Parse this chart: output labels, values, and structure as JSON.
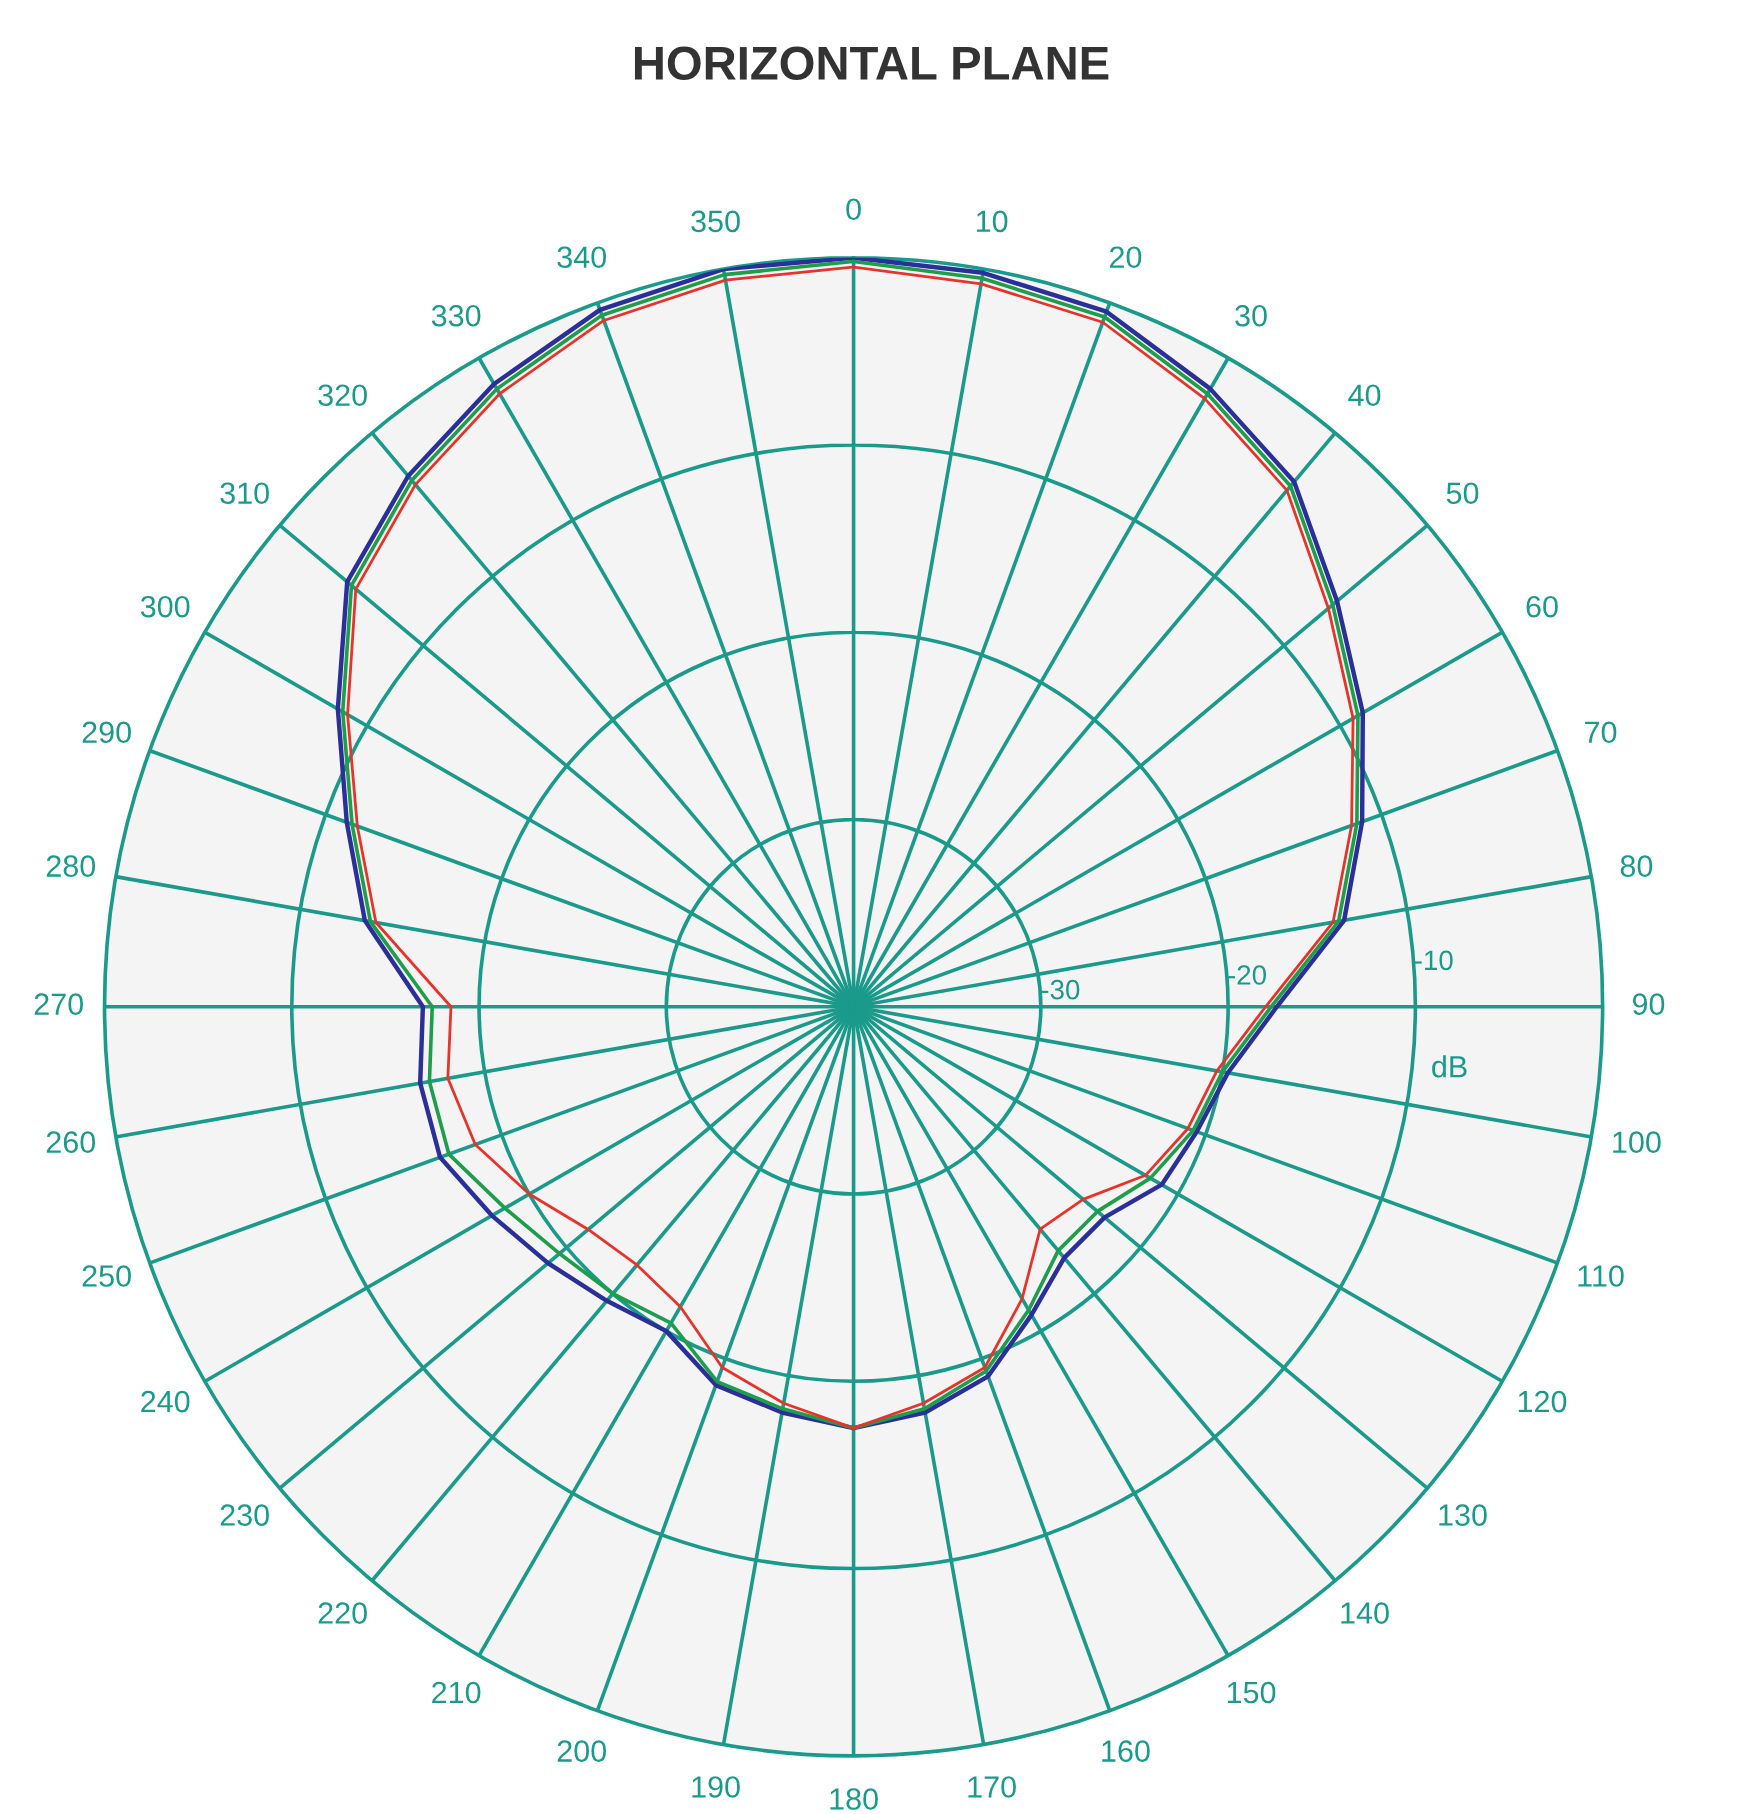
{
  "chart_data": {
    "type": "radar",
    "title": "HORIZONTAL PLANE",
    "ylabel": "dB",
    "categories": [
      "0",
      "10",
      "20",
      "30",
      "40",
      "50",
      "60",
      "70",
      "80",
      "90",
      "100",
      "110",
      "120",
      "130",
      "140",
      "150",
      "160",
      "170",
      "180",
      "190",
      "200",
      "210",
      "220",
      "230",
      "240",
      "250",
      "260",
      "270",
      "280",
      "290",
      "300",
      "310",
      "320",
      "330",
      "340",
      "350"
    ],
    "ylim": [
      -40,
      0
    ],
    "yticks": [
      {
        "value": -30,
        "label": "-30"
      },
      {
        "value": -20,
        "label": "-20"
      },
      {
        "value": -10,
        "label": "-10"
      }
    ],
    "grid": true,
    "marker": "none",
    "line_style": "solid",
    "series": [
      {
        "color": "#2b2f9a",
        "values": [
          0,
          -0.2,
          -0.5,
          -1.9,
          -3.4,
          -6.3,
          -8.6,
          -11.1,
          -13.4,
          -17.4,
          -19.7,
          -20.5,
          -21,
          -22.5,
          -22.5,
          -21,
          -19,
          -18,
          -17.5,
          -18,
          -18.5,
          -20,
          -19.5,
          -18.7,
          -17.7,
          -16.5,
          -16.5,
          -17,
          -13.5,
          -11.2,
          -8.2,
          -4.7,
          -3,
          -1.6,
          -0.4,
          0
        ]
      },
      {
        "color": "#1e9e4a",
        "values": [
          -0.2,
          -0.5,
          -0.8,
          -2.2,
          -3.7,
          -6.6,
          -8.9,
          -11.4,
          -13.7,
          -17.7,
          -20,
          -20.7,
          -21.7,
          -23,
          -23,
          -21.3,
          -19.3,
          -18.2,
          -17.5,
          -18.2,
          -18.7,
          -20.5,
          -20,
          -19.5,
          -18.5,
          -17,
          -17,
          -17.5,
          -13.8,
          -11.5,
          -8.5,
          -5,
          -3.3,
          -1.9,
          -0.7,
          -0.3
        ]
      },
      {
        "color": "#e8332b",
        "values": [
          -0.5,
          -0.8,
          -1.1,
          -2.5,
          -4,
          -6.9,
          -9.2,
          -11.7,
          -14,
          -18,
          -20.3,
          -21,
          -22,
          -24,
          -24.5,
          -22,
          -19.5,
          -18.5,
          -17.5,
          -18.5,
          -19.5,
          -21.5,
          -22,
          -21.5,
          -20,
          -18.5,
          -18,
          -18.5,
          -14.1,
          -11.8,
          -8.8,
          -5.3,
          -3.6,
          -2.2,
          -1,
          -0.6
        ]
      }
    ]
  }
}
